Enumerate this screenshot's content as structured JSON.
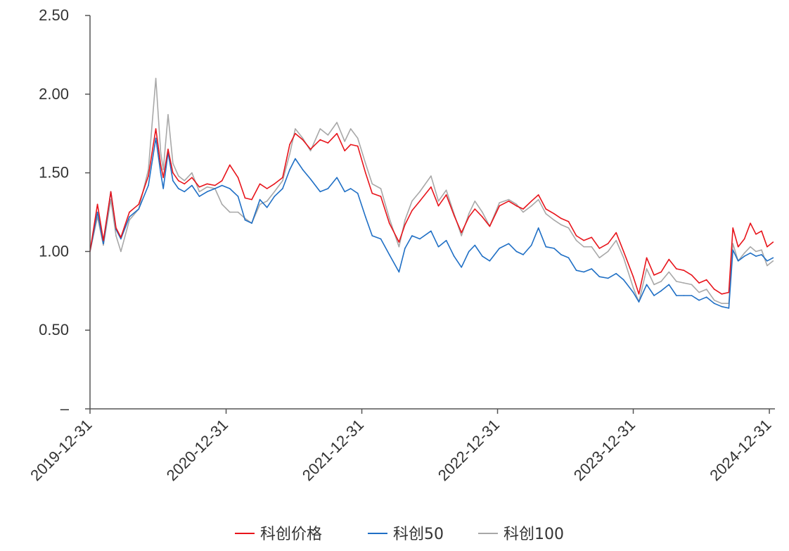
{
  "chart_data": {
    "type": "line",
    "title": "",
    "xlabel": "",
    "ylabel": "",
    "x_ticks": [
      "2019-12-31",
      "2020-12-31",
      "2021-12-31",
      "2022-12-31",
      "2023-12-31",
      "2024-12-31"
    ],
    "y_ticks": [
      "–",
      "0.50",
      "1.00",
      "1.50",
      "2.00",
      "2.50"
    ],
    "y_tick_values": [
      0,
      0.5,
      1.0,
      1.5,
      2.0,
      2.5
    ],
    "ylim": [
      0,
      2.5
    ],
    "xlim": [
      "2019-12-31",
      "2025-01-15"
    ],
    "grid": false,
    "legend_position": "bottom",
    "x": [
      "2019-12-31",
      "2020-01-20",
      "2020-02-05",
      "2020-02-25",
      "2020-03-10",
      "2020-03-23",
      "2020-04-15",
      "2020-05-10",
      "2020-06-05",
      "2020-06-25",
      "2020-07-08",
      "2020-07-15",
      "2020-07-28",
      "2020-08-10",
      "2020-08-25",
      "2020-09-10",
      "2020-09-30",
      "2020-10-20",
      "2020-11-10",
      "2020-12-01",
      "2020-12-20",
      "2021-01-10",
      "2021-02-01",
      "2021-02-20",
      "2021-03-10",
      "2021-04-01",
      "2021-04-20",
      "2021-05-10",
      "2021-06-01",
      "2021-06-20",
      "2021-07-05",
      "2021-07-25",
      "2021-08-15",
      "2021-09-10",
      "2021-10-01",
      "2021-10-25",
      "2021-11-15",
      "2021-12-01",
      "2021-12-20",
      "2022-01-10",
      "2022-01-28",
      "2022-02-20",
      "2022-03-15",
      "2022-04-10",
      "2022-04-26",
      "2022-05-15",
      "2022-06-05",
      "2022-07-05",
      "2022-07-25",
      "2022-08-15",
      "2022-09-05",
      "2022-09-25",
      "2022-10-15",
      "2022-10-31",
      "2022-11-20",
      "2022-12-10",
      "2023-01-05",
      "2023-01-30",
      "2023-02-20",
      "2023-03-10",
      "2023-04-01",
      "2023-04-20",
      "2023-05-10",
      "2023-06-01",
      "2023-06-20",
      "2023-07-10",
      "2023-07-31",
      "2023-08-20",
      "2023-09-10",
      "2023-10-01",
      "2023-10-24",
      "2023-11-15",
      "2023-12-05",
      "2023-12-31",
      "2024-01-15",
      "2024-02-05",
      "2024-02-25",
      "2024-03-15",
      "2024-04-05",
      "2024-04-25",
      "2024-05-15",
      "2024-06-05",
      "2024-06-25",
      "2024-07-15",
      "2024-08-05",
      "2024-08-25",
      "2024-09-13",
      "2024-09-24",
      "2024-10-08",
      "2024-10-25",
      "2024-11-10",
      "2024-11-25",
      "2024-12-10",
      "2024-12-25",
      "2025-01-10"
    ],
    "series": [
      {
        "name": "科创价格",
        "color": "#e8141b",
        "values": [
          1.0,
          1.3,
          1.07,
          1.38,
          1.15,
          1.09,
          1.25,
          1.3,
          1.48,
          1.78,
          1.55,
          1.47,
          1.65,
          1.5,
          1.45,
          1.43,
          1.47,
          1.41,
          1.43,
          1.42,
          1.45,
          1.55,
          1.47,
          1.34,
          1.33,
          1.43,
          1.4,
          1.43,
          1.47,
          1.68,
          1.75,
          1.71,
          1.65,
          1.71,
          1.69,
          1.75,
          1.64,
          1.68,
          1.67,
          1.5,
          1.37,
          1.35,
          1.18,
          1.06,
          1.17,
          1.26,
          1.32,
          1.41,
          1.29,
          1.36,
          1.23,
          1.12,
          1.22,
          1.27,
          1.22,
          1.16,
          1.29,
          1.32,
          1.29,
          1.27,
          1.32,
          1.36,
          1.27,
          1.24,
          1.21,
          1.19,
          1.1,
          1.07,
          1.09,
          1.02,
          1.05,
          1.12,
          1.0,
          0.84,
          0.73,
          0.96,
          0.85,
          0.87,
          0.95,
          0.89,
          0.88,
          0.85,
          0.8,
          0.82,
          0.76,
          0.73,
          0.74,
          1.15,
          1.03,
          1.08,
          1.18,
          1.11,
          1.13,
          1.03,
          1.06
        ]
      },
      {
        "name": "科创50",
        "color": "#1f6fc5",
        "values": [
          1.0,
          1.25,
          1.05,
          1.38,
          1.14,
          1.08,
          1.22,
          1.27,
          1.42,
          1.72,
          1.5,
          1.4,
          1.63,
          1.45,
          1.4,
          1.38,
          1.42,
          1.35,
          1.38,
          1.4,
          1.42,
          1.4,
          1.35,
          1.2,
          1.18,
          1.33,
          1.28,
          1.35,
          1.4,
          1.52,
          1.59,
          1.52,
          1.46,
          1.38,
          1.4,
          1.47,
          1.38,
          1.4,
          1.37,
          1.22,
          1.1,
          1.08,
          0.98,
          0.87,
          1.02,
          1.1,
          1.08,
          1.13,
          1.03,
          1.07,
          0.97,
          0.9,
          1.0,
          1.04,
          0.97,
          0.94,
          1.02,
          1.05,
          1.0,
          0.98,
          1.04,
          1.15,
          1.03,
          1.02,
          0.98,
          0.96,
          0.88,
          0.87,
          0.89,
          0.84,
          0.83,
          0.86,
          0.82,
          0.74,
          0.68,
          0.79,
          0.72,
          0.75,
          0.79,
          0.72,
          0.72,
          0.72,
          0.69,
          0.71,
          0.67,
          0.65,
          0.64,
          1.01,
          0.94,
          0.97,
          0.99,
          0.97,
          0.98,
          0.94,
          0.96
        ]
      },
      {
        "name": "科创100",
        "color": "#a8a8a8",
        "values": [
          1.0,
          1.22,
          1.04,
          1.33,
          1.1,
          1.0,
          1.2,
          1.27,
          1.52,
          2.1,
          1.63,
          1.52,
          1.87,
          1.56,
          1.48,
          1.45,
          1.5,
          1.38,
          1.41,
          1.4,
          1.3,
          1.25,
          1.25,
          1.21,
          1.18,
          1.3,
          1.32,
          1.38,
          1.45,
          1.62,
          1.78,
          1.72,
          1.64,
          1.78,
          1.74,
          1.82,
          1.7,
          1.78,
          1.72,
          1.56,
          1.43,
          1.4,
          1.21,
          1.03,
          1.2,
          1.32,
          1.38,
          1.48,
          1.32,
          1.39,
          1.24,
          1.1,
          1.24,
          1.32,
          1.25,
          1.16,
          1.31,
          1.33,
          1.3,
          1.25,
          1.29,
          1.33,
          1.24,
          1.2,
          1.17,
          1.15,
          1.07,
          1.03,
          1.03,
          0.96,
          1.0,
          1.07,
          0.96,
          0.77,
          0.68,
          0.89,
          0.79,
          0.81,
          0.87,
          0.81,
          0.8,
          0.79,
          0.74,
          0.76,
          0.69,
          0.67,
          0.67,
          1.05,
          0.94,
          0.99,
          1.03,
          1.0,
          1.01,
          0.91,
          0.94
        ]
      }
    ]
  }
}
